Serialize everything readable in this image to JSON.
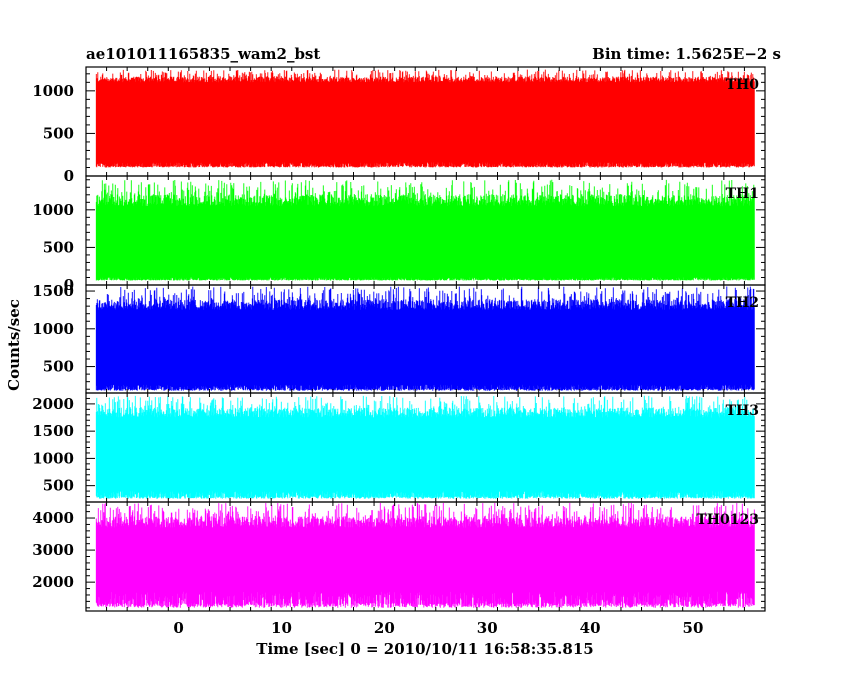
{
  "chart_data": {
    "type": "line",
    "title": "ae101011165835_wam2_bst",
    "subtitle": "Bin time: 1.5625E−2 s",
    "xlabel": "Time [sec] 0 = 2010/10/11 16:58:35.815",
    "ylabel": "Counts/sec",
    "xlim": [
      -9,
      57
    ],
    "xticks": [
      0,
      10,
      20,
      30,
      40,
      50
    ],
    "x_range": [
      -8,
      56
    ],
    "grid": false,
    "legend": "none",
    "panels": [
      {
        "name": "TH0",
        "color": "#ff0000",
        "ylim": [
          0,
          1280
        ],
        "yticks": [
          0,
          500,
          1000
        ],
        "band_low": 100,
        "band_high": 1250,
        "dip_low": 160,
        "dip_high": 1100
      },
      {
        "name": "TH1",
        "color": "#00ff00",
        "ylim": [
          0,
          1450
        ],
        "yticks": [
          0,
          500,
          1000
        ],
        "band_low": 60,
        "band_high": 1400,
        "dip_low": 100,
        "dip_high": 1050
      },
      {
        "name": "TH2",
        "color": "#0000ff",
        "ylim": [
          150,
          1580
        ],
        "yticks": [
          500,
          1000,
          1500
        ],
        "band_low": 180,
        "band_high": 1560,
        "dip_low": 260,
        "dip_high": 1250
      },
      {
        "name": "TH3",
        "color": "#00ffff",
        "ylim": [
          200,
          2200
        ],
        "yticks": [
          500,
          1000,
          1500,
          2000
        ],
        "band_low": 260,
        "band_high": 2150,
        "dip_low": 400,
        "dip_high": 1750
      },
      {
        "name": "TH0123",
        "color": "#ff00ff",
        "ylim": [
          1100,
          4500
        ],
        "yticks": [
          2000,
          3000,
          4000
        ],
        "band_low": 1200,
        "band_high": 4480,
        "dip_low": 1700,
        "dip_high": 3700
      }
    ]
  }
}
